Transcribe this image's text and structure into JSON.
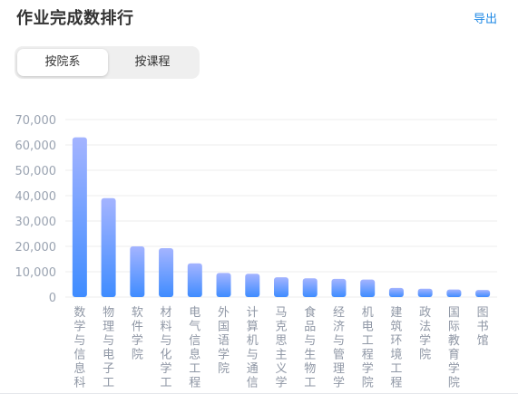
{
  "header": {
    "title": "作业完成数排行",
    "export_label": "导出"
  },
  "segmented": {
    "options": [
      "按院系",
      "按课程"
    ],
    "selected_index": 0
  },
  "colors": {
    "bar_top": "#a4b4ff",
    "bar_bottom": "#3f8cff",
    "grid": "#eeeeee",
    "accent": "#1e88e5"
  },
  "chart_data": {
    "type": "bar",
    "categories": [
      "数学与信息科",
      "物理与电子工",
      "软件学院",
      "材料与化学工",
      "电气信息工程",
      "外国语学院",
      "计算机与通信",
      "马克思主义学",
      "食品与生物工",
      "经济与管理学",
      "机电工程学院",
      "建筑环境工程",
      "政法学院",
      "国际教育学院",
      "图书馆"
    ],
    "values": [
      63000,
      39000,
      20000,
      19300,
      13300,
      9500,
      9200,
      7800,
      7400,
      7200,
      6900,
      3600,
      3300,
      3000,
      2800
    ],
    "ylim": [
      0,
      70000
    ],
    "yticks": [
      0,
      10000,
      20000,
      30000,
      40000,
      50000,
      60000,
      70000
    ],
    "ytick_labels": [
      "0",
      "10,000",
      "20,000",
      "30,000",
      "40,000",
      "50,000",
      "60,000",
      "70,000"
    ],
    "grid": true,
    "legend": "none"
  }
}
